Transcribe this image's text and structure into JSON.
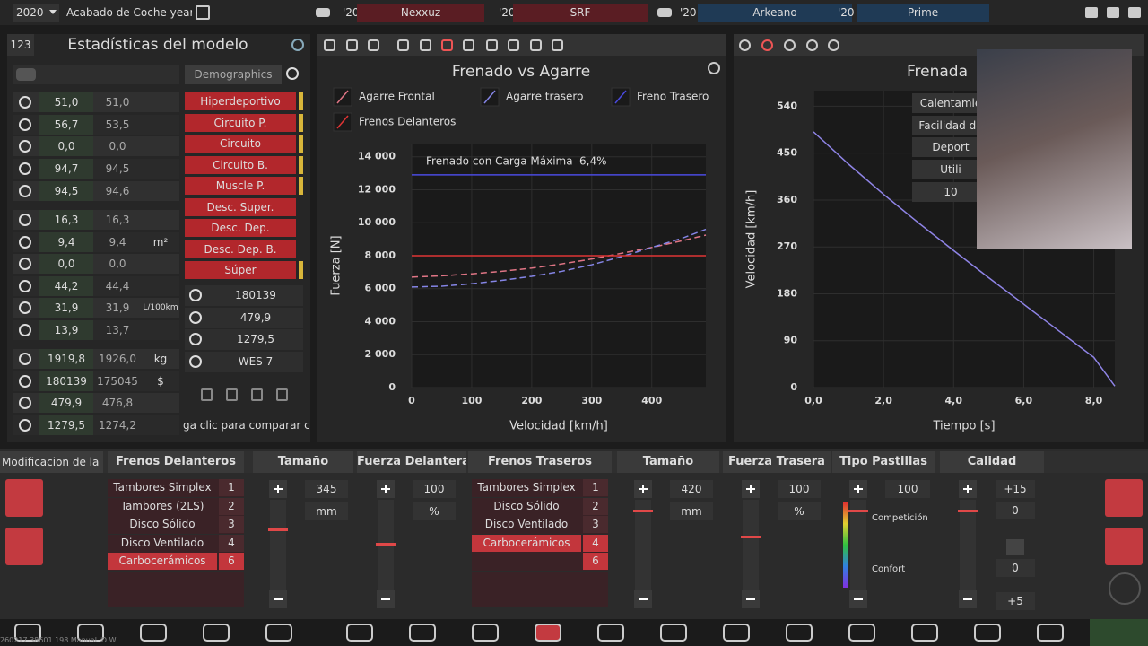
{
  "top_bar": {
    "year": "2020",
    "trim": "Acabado de Coche year",
    "competitors": [
      {
        "year": "'20",
        "name": "Nexxuz"
      },
      {
        "year": "'20",
        "name": "SRF"
      },
      {
        "year": "'20",
        "name": "Arkeano"
      },
      {
        "year": "'20",
        "name": "Prime"
      }
    ]
  },
  "stats_panel": {
    "badge": "123",
    "title": "Estadísticas del modelo",
    "demographics_tab": "Demographics",
    "groups": [
      [
        {
          "current": "51,0",
          "compare": "51,0"
        },
        {
          "current": "56,7",
          "compare": "53,5"
        },
        {
          "current": "0,0",
          "compare": "0,0"
        },
        {
          "current": "94,7",
          "compare": "94,5"
        },
        {
          "current": "94,5",
          "compare": "94,6"
        }
      ],
      [
        {
          "current": "16,3",
          "compare": "16,3"
        },
        {
          "current": "9,4",
          "compare": "9,4",
          "unit": "m²"
        },
        {
          "current": "0,0",
          "compare": "0,0"
        },
        {
          "current": "44,2",
          "compare": "44,4"
        },
        {
          "current": "31,9",
          "compare": "31,9",
          "unit": "L/100km"
        },
        {
          "current": "13,9",
          "compare": "13,7"
        }
      ],
      [
        {
          "current": "1919,8",
          "compare": "1926,0",
          "unit": "kg"
        },
        {
          "current": "180139",
          "compare": "175045",
          "unit": "$"
        },
        {
          "current": "479,9",
          "compare": "476,8"
        },
        {
          "current": "1279,5",
          "compare": "1274,2"
        }
      ]
    ],
    "demographics": [
      "Hiperdeportivo",
      "Circuito P.",
      "Circuito",
      "Circuito B.",
      "Muscle P.",
      "Desc. Super.",
      "Desc. Dep.",
      "Desc. Dep. B.",
      "Súper"
    ],
    "demographics_marked": [
      0,
      1,
      2,
      3,
      4,
      8
    ],
    "info": [
      "180139",
      "479,9",
      "1279,5",
      "WES 7"
    ],
    "compare_hint": "ga clic para comparar coc"
  },
  "side_tabs": [
    "Calentamie",
    "Facilidad de",
    "Deport",
    "Utili",
    "10"
  ],
  "brakes": {
    "tab": "Modificacion de la IA",
    "headers": [
      "Frenos Delanteros",
      "Tamaño",
      "Fuerza Delantera",
      "Frenos Traseros",
      "Tamaño",
      "Fuerza Trasera",
      "Tipo Pastillas",
      "Calidad"
    ],
    "front_types": [
      {
        "name": "Tambores Simplex",
        "number": "1"
      },
      {
        "name": "Tambores (2LS)",
        "number": "2"
      },
      {
        "name": "Disco Sólido",
        "number": "3"
      },
      {
        "name": "Disco Ventilado",
        "number": "4"
      },
      {
        "name": "Carbocerámicos",
        "number": "6"
      }
    ],
    "front_selected": 4,
    "front_size": {
      "value": "345",
      "unit": "mm"
    },
    "front_force": {
      "value": "100",
      "unit": "%"
    },
    "rear_types": [
      {
        "name": "Tambores Simplex",
        "number": "1"
      },
      {
        "name": "Disco Sólido",
        "number": "2"
      },
      {
        "name": "Disco Ventilado",
        "number": "3"
      },
      {
        "name": "Carbocerámicos",
        "number": "4"
      }
    ],
    "rear_selected": 3,
    "rear_extra_number": "6",
    "rear_size": {
      "value": "420",
      "unit": "mm"
    },
    "rear_force": {
      "value": "100",
      "unit": "%"
    },
    "pads": {
      "value": "100",
      "high": "Competición",
      "low": "Confort"
    },
    "quality": [
      "+15",
      "0",
      "0",
      "+5"
    ]
  },
  "build_info": "260217.38601.198.Manual.ID.W",
  "chart_data": [
    {
      "type": "line",
      "title": "Frenado vs Agarre",
      "x_label": "Velocidad [km/h]",
      "y_label": "Fuerza [N]",
      "annotation": {
        "text": "Frenado con Carga Máxima",
        "value": "6,4%"
      },
      "x": [
        0,
        50,
        100,
        150,
        200,
        250,
        300,
        350,
        400,
        450,
        490
      ],
      "xlim": [
        0,
        490
      ],
      "xticks": [
        0,
        100,
        200,
        300,
        400
      ],
      "ylim": [
        0,
        14800
      ],
      "yticks": [
        0,
        {
          "value": 2000,
          "label": "2 000"
        },
        {
          "value": 4000,
          "label": "4 000"
        },
        {
          "value": 6000,
          "label": "6 000"
        },
        {
          "value": 8000,
          "label": "8 000"
        },
        {
          "value": 10000,
          "label": "10 000"
        },
        {
          "value": 12000,
          "label": "12 000"
        },
        {
          "value": 14000,
          "label": "14 000"
        }
      ],
      "grid": true,
      "series": [
        {
          "name": "Agarre Frontal",
          "color": "#e07585",
          "dashed": true,
          "values": [
            6700,
            6780,
            6900,
            7050,
            7250,
            7500,
            7800,
            8150,
            8500,
            8900,
            9250
          ]
        },
        {
          "name": "Agarre trasero",
          "color": "#8585e6",
          "dashed": true,
          "values": [
            6100,
            6150,
            6300,
            6500,
            6750,
            7050,
            7450,
            7950,
            8500,
            9050,
            9600
          ]
        },
        {
          "name": "Freno Trasero",
          "color": "#4a4ae0",
          "dashed": false,
          "values": [
            12900,
            12900,
            12900,
            12900,
            12900,
            12900,
            12900,
            12900,
            12900,
            12900,
            12900
          ]
        },
        {
          "name": "Frenos Delanteros",
          "color": "#e03434",
          "dashed": false,
          "values": [
            8000,
            8000,
            8000,
            8000,
            8000,
            8000,
            8000,
            8000,
            8000,
            8000,
            8000
          ]
        }
      ]
    },
    {
      "type": "line",
      "title": "Frenada",
      "x_label": "Tiempo [s]",
      "y_label": "Velocidad [km/h]",
      "x": [
        0,
        1,
        2,
        3,
        4,
        5,
        6,
        7,
        8,
        8.6
      ],
      "values": [
        491,
        429,
        371,
        316,
        263,
        211,
        160,
        109,
        58,
        3
      ],
      "color": "#8f84e6",
      "xlim": [
        0,
        8.6
      ],
      "xticks": [
        {
          "value": 0,
          "label": "0,0"
        },
        {
          "value": 2,
          "label": "2,0"
        },
        {
          "value": 4,
          "label": "4,0"
        },
        {
          "value": 6,
          "label": "6,0"
        },
        {
          "value": 8,
          "label": "8,0"
        }
      ],
      "ylim": [
        0,
        570
      ],
      "yticks": [
        0,
        90,
        180,
        270,
        360,
        450,
        540
      ],
      "grid": true
    }
  ]
}
